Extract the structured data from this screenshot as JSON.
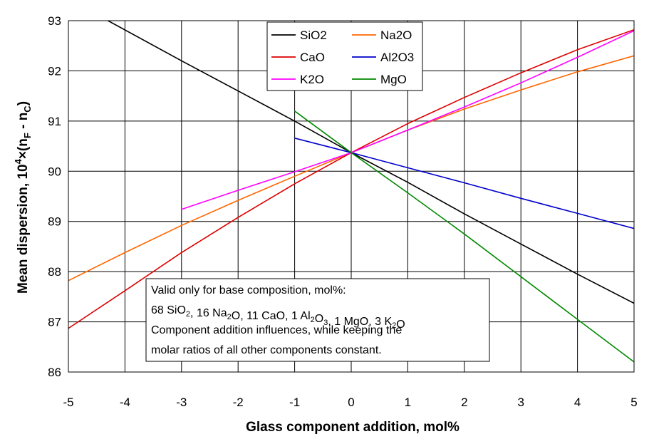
{
  "chart_data": {
    "type": "line",
    "xlabel": "Glass component addition, mol%",
    "ylabel_main": "Mean dispersion, 10",
    "ylabel_sup": "4",
    "ylabel_mid": "×(n",
    "ylabel_sub1": "F",
    "ylabel_dash": " - n",
    "ylabel_sub2": "C",
    "ylabel_end": ")",
    "xlim": [
      -5,
      5
    ],
    "ylim": [
      86,
      93
    ],
    "xticks": [
      "-5",
      "-4",
      "-3",
      "-2",
      "-1",
      "0",
      "1",
      "2",
      "3",
      "4",
      "5"
    ],
    "yticks": [
      "86",
      "87",
      "88",
      "89",
      "90",
      "91",
      "92",
      "93"
    ],
    "grid": true,
    "legend_position": "top-center",
    "series": [
      {
        "name": "SiO2",
        "color": "#000000",
        "x": [
          -5,
          -4.3,
          -3,
          -2,
          -1,
          0,
          1,
          2,
          3,
          4,
          5
        ],
        "y": [
          93.35,
          93.0,
          92.2,
          91.6,
          91.0,
          90.37,
          89.78,
          89.15,
          88.55,
          87.95,
          87.37
        ]
      },
      {
        "name": "Na2O",
        "color": "#ff6600",
        "x": [
          -5,
          -4,
          -3,
          -2,
          -1,
          0,
          1,
          2,
          3,
          4,
          5
        ],
        "y": [
          87.82,
          88.38,
          88.92,
          89.42,
          89.9,
          90.37,
          90.82,
          91.24,
          91.62,
          91.98,
          92.3
        ]
      },
      {
        "name": "CaO",
        "color": "#dd0000",
        "x": [
          -5,
          -4,
          -3,
          -2,
          -1,
          0,
          1,
          2,
          3,
          4,
          5
        ],
        "y": [
          86.87,
          87.62,
          88.38,
          89.08,
          89.75,
          90.37,
          90.95,
          91.47,
          91.96,
          92.42,
          92.82
        ]
      },
      {
        "name": "Al2O3",
        "color": "#0000cc",
        "x": [
          -1,
          0,
          1,
          2,
          3,
          4,
          5
        ],
        "y": [
          90.66,
          90.37,
          90.07,
          89.77,
          89.46,
          89.16,
          88.86
        ]
      },
      {
        "name": "K2O",
        "color": "#ff00ff",
        "x": [
          -3,
          -2,
          -1,
          0,
          1,
          2,
          3,
          4,
          5
        ],
        "y": [
          89.24,
          89.62,
          89.99,
          90.37,
          90.82,
          91.28,
          91.76,
          92.27,
          92.8
        ]
      },
      {
        "name": "MgO",
        "color": "#008800",
        "x": [
          -1,
          0,
          1,
          2,
          3,
          4,
          5
        ],
        "y": [
          91.2,
          90.37,
          89.57,
          88.75,
          87.9,
          87.05,
          86.2
        ]
      }
    ],
    "annotation": {
      "line1": "Valid only for base composition, mol%:",
      "line2_parts": [
        {
          "t": "68 SiO",
          "s": ""
        },
        {
          "t": "2",
          "s": "sub"
        },
        {
          "t": ", 16 Na",
          "s": ""
        },
        {
          "t": "2",
          "s": "sub"
        },
        {
          "t": "O, 11 CaO, 1 Al",
          "s": ""
        },
        {
          "t": "2",
          "s": "sub"
        },
        {
          "t": "O",
          "s": ""
        },
        {
          "t": "3",
          "s": "sub"
        },
        {
          "t": ", 1 MgO, 3 K",
          "s": ""
        },
        {
          "t": "2",
          "s": "sub"
        },
        {
          "t": "O",
          "s": ""
        }
      ],
      "line3": "Component addition influences, while keeping the",
      "line4": "molar ratios of all other components constant."
    }
  }
}
